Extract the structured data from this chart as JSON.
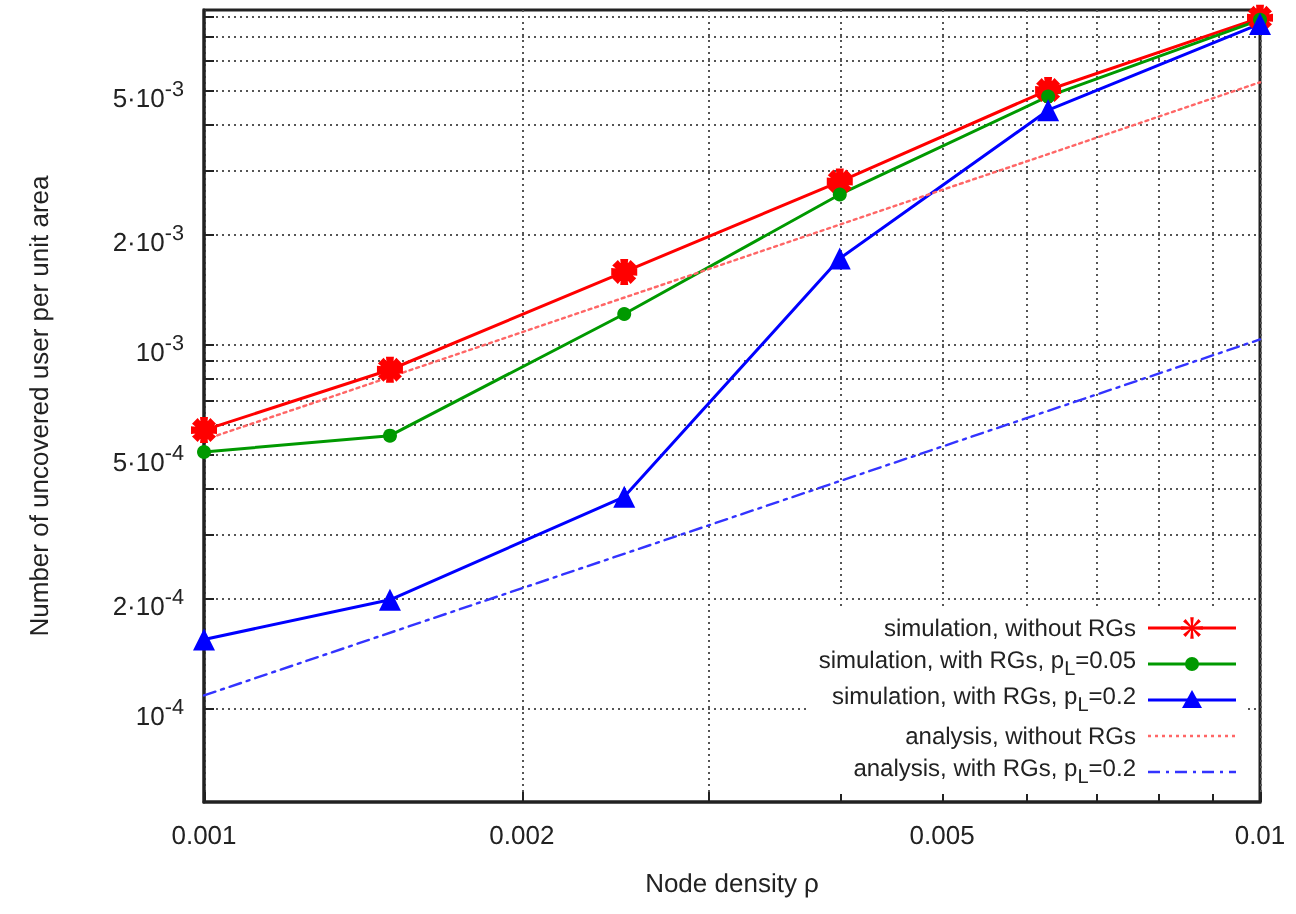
{
  "chart_data": {
    "type": "line",
    "xlabel": "Node density ρ",
    "ylabel": "Number of uncovered user per unit area",
    "log": "xy",
    "grid": true,
    "legend": "bottom right",
    "xlim": [
      0.001,
      0.01
    ],
    "xticks": [
      0.001,
      0.002,
      {
        "value": 0.003,
        "label": null
      },
      {
        "value": 0.004,
        "label": null
      },
      0.005,
      {
        "value": 0.006,
        "label": null
      },
      {
        "value": 0.007,
        "label": null
      },
      {
        "value": 0.008,
        "label": null
      },
      {
        "value": 0.009,
        "label": null
      },
      0.01
    ],
    "ylim": [
      5.5e-05,
      0.0083
    ],
    "yticks": [
      {
        "value": 0.0001,
        "label": "10$^{-4}$"
      },
      {
        "value": 0.0002,
        "label": "2·10$^{-4}$"
      },
      {
        "value": 0.0003,
        "label": null
      },
      {
        "value": 0.0004,
        "label": null
      },
      {
        "value": 0.0005,
        "label": "5·10$^{-4}$"
      },
      {
        "value": 0.0006,
        "label": null
      },
      {
        "value": 0.0007,
        "label": null
      },
      {
        "value": 0.0008,
        "label": null
      },
      {
        "value": 0.0009,
        "label": null
      },
      {
        "value": 0.001,
        "label": "10$^{-3}$"
      },
      {
        "value": 0.002,
        "label": "2·10$^{-3}$"
      },
      {
        "value": 0.003,
        "label": null
      },
      {
        "value": 0.004,
        "label": null
      },
      {
        "value": 0.005,
        "label": "5·10$^{-3}$"
      },
      {
        "value": 0.006,
        "label": null
      },
      {
        "value": 0.007,
        "label": null
      },
      {
        "value": 0.008,
        "label": null
      }
    ],
    "series": [
      {
        "name": "simulation, without RGs",
        "color": "#ff0000",
        "marker": "cross",
        "line_style": "solid",
        "x": [
          0.001,
          0.0015,
          0.0025,
          0.004,
          0.0063,
          0.01
        ],
        "values": [
          0.00058,
          0.00085,
          0.00158,
          0.0028,
          0.005,
          0.0079
        ]
      },
      {
        "name": "simulation, with RGs, p$_{L}$=0.05",
        "color": "#009900",
        "marker": "circle",
        "line_style": "solid",
        "x": [
          0.001,
          0.0015,
          0.0025,
          0.004,
          0.0063,
          0.01
        ],
        "values": [
          0.000505,
          0.00056,
          0.00121,
          0.00258,
          0.0048,
          0.0078
        ]
      },
      {
        "name": "simulation, with RGs, p$_{L}$=0.2",
        "color": "#0000ff",
        "marker": "triangle",
        "line_style": "solid",
        "x": [
          0.001,
          0.0015,
          0.0025,
          0.004,
          0.0063,
          0.01
        ],
        "values": [
          0.000154,
          0.000198,
          0.00038,
          0.00172,
          0.0044,
          0.0076
        ]
      },
      {
        "name": "analysis, without RGs",
        "color": "#ff6666",
        "marker": "none",
        "line_style": "dotted",
        "x": [
          0.001,
          0.01
        ],
        "values": [
          0.000545,
          0.00525
        ]
      },
      {
        "name": "analysis, with RGs, p$_{L}$=0.2",
        "color": "#3333ff",
        "marker": "none",
        "line_style": "dashdot",
        "x": [
          0.001,
          0.01
        ],
        "values": [
          0.000108,
          0.00103
        ]
      }
    ]
  }
}
